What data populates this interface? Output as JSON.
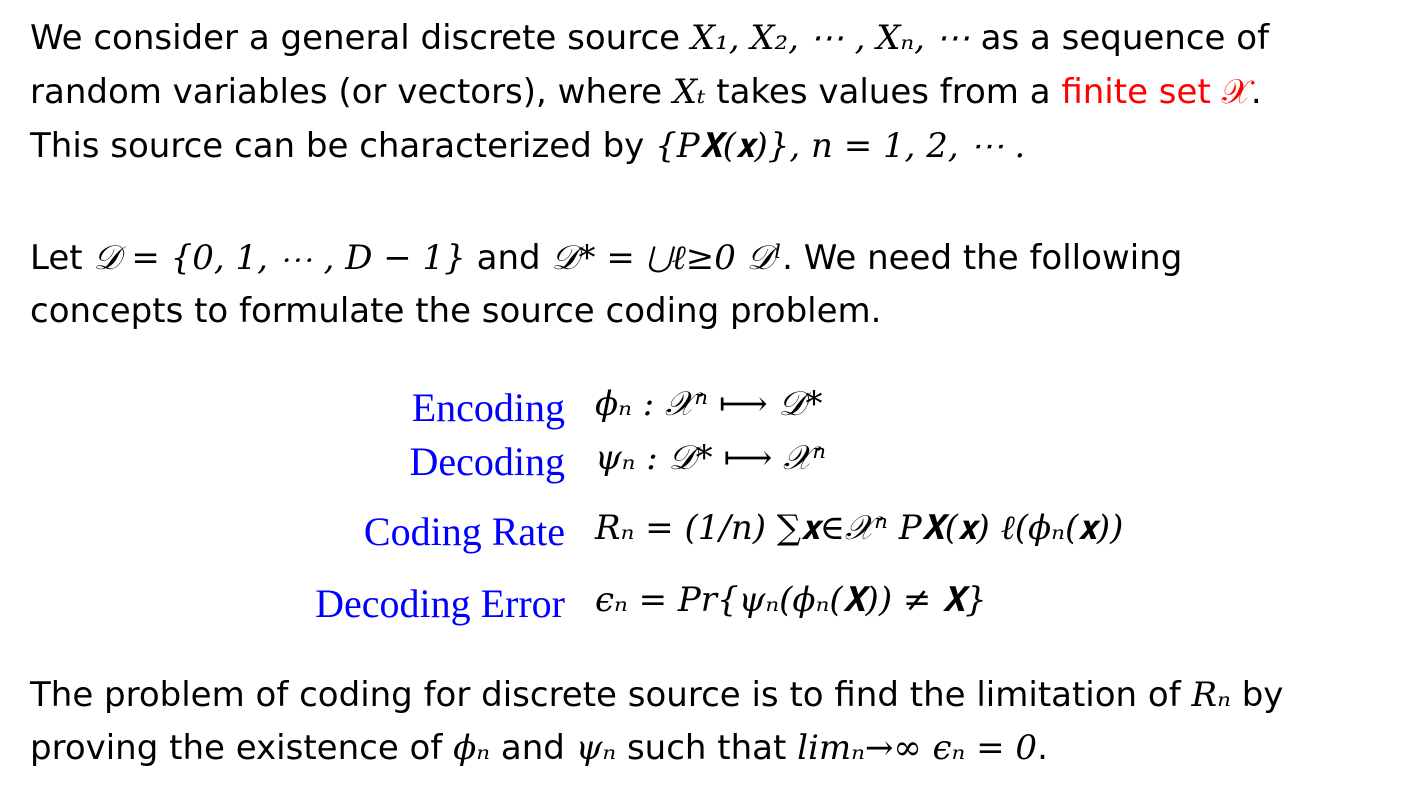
{
  "paragraph1": {
    "l1_text": "We consider a general discrete source ",
    "l1_math": "X₁, X₂, ⋯ , Xₙ, ⋯",
    "l1_tail": " as a sequence of",
    "l2_text": "random variables (or vectors), where ",
    "l2_math": "Xₜ",
    "l2_mid": " takes values from a ",
    "l2_red": "finite set 𝒳",
    "l2_tail": ".",
    "l3_text": "This source can be characterized by ",
    "l3_math": "{P𝐗(𝐱)}, n = 1, 2, ⋯ .",
    "red_color": "#ff0000"
  },
  "paragraph2": {
    "l1_text": "Let ",
    "l1_math1": "𝒟 = {0, 1, ⋯ , D − 1}",
    "l1_mid": " and ",
    "l1_math2": "𝒟* = ⋃ℓ≥0 𝒟ˡ",
    "l1_tail": ". We need the following",
    "l2_text": "concepts to formulate the source coding problem."
  },
  "definitions": [
    {
      "label": "Encoding",
      "formula": "ϕₙ : 𝒳ⁿ ⟼ 𝒟*"
    },
    {
      "label": "Decoding",
      "formula": "ψₙ : 𝒟* ⟼ 𝒳ⁿ"
    },
    {
      "label": "Coding Rate",
      "formula": "Rₙ = (1/n) ∑𝐱∈𝒳ⁿ P𝐗(𝐱) ℓ(ϕₙ(𝐱))"
    },
    {
      "label": "Decoding Error",
      "formula": "ϵₙ = Pr{ψₙ(ϕₙ(𝐗)) ≠ 𝐗}"
    }
  ],
  "label_color": "#0000ff",
  "paragraph3": {
    "l1_text": "The problem of coding for discrete source is to find the limitation of ",
    "l1_math": "Rₙ",
    "l1_tail": " by",
    "l2_text": "proving the existence of ",
    "l2_math1": "ϕₙ",
    "l2_mid1": " and ",
    "l2_math2": "ψₙ",
    "l2_mid2": " such that ",
    "l2_math3": "limₙ→∞ ϵₙ = 0",
    "l2_tail": "."
  }
}
